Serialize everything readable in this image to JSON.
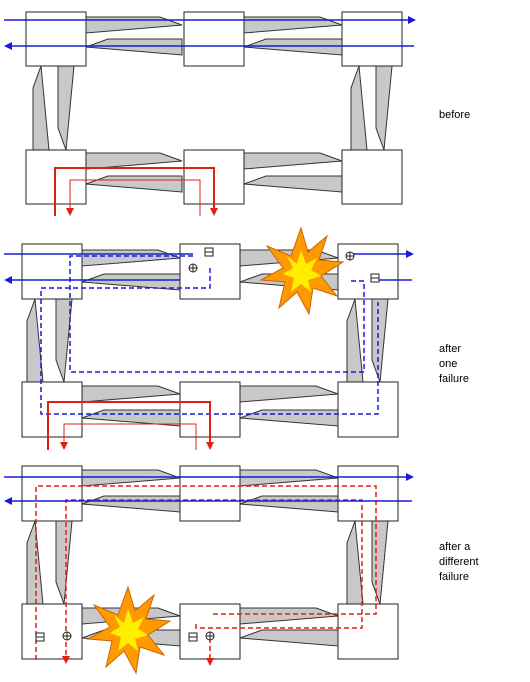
{
  "captions": {
    "before": [
      "before"
    ],
    "after_one": [
      "after",
      "one",
      "failure"
    ],
    "after_different": [
      "after a",
      "different",
      "failure"
    ]
  },
  "colors": {
    "blue": "#1a1adb",
    "red": "#e02010",
    "link_fill": "#c8c8c8",
    "node_fill": "#ffffff",
    "explosion_outer": "#ff9900",
    "explosion_inner": "#ffee00"
  },
  "panels": [
    {
      "name": "before",
      "failed_link": "none",
      "paths": "working"
    },
    {
      "name": "after-one-failure",
      "failed_link": "top-right",
      "paths": "protection"
    },
    {
      "name": "after-different-failure",
      "failed_link": "bottom-left",
      "paths": "protection"
    }
  ]
}
